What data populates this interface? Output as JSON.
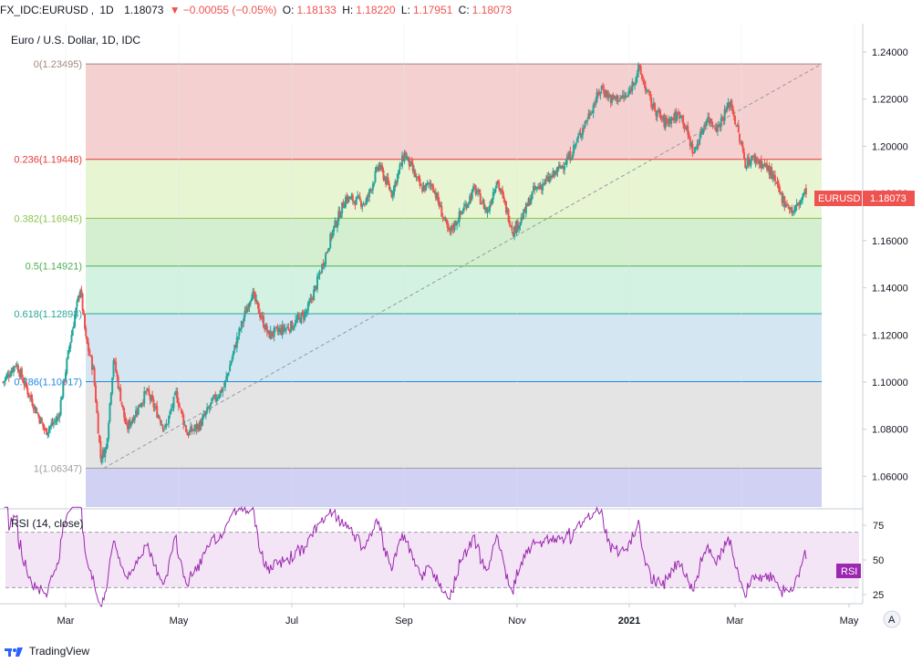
{
  "header": {
    "symbol": "FX_IDC:EURUSD",
    "interval": "1D",
    "last": "1.18073",
    "change_arrow": "▼",
    "change": "−0.00055 (−0.05%)",
    "o_label": "O:",
    "o_value": "1.18133",
    "h_label": "H:",
    "h_value": "1.18220",
    "l_label": "L:",
    "l_value": "1.17951",
    "c_label": "C:",
    "c_value": "1.18073"
  },
  "legend": {
    "title": "Euro / U.S. Dollar, 1D, IDC"
  },
  "price_tag": {
    "symbol": "EURUSD",
    "value": "1.18073",
    "color": "#ef5350"
  },
  "rsi": {
    "label": "RSI (14, close)",
    "tag": "RSI",
    "color": "#9c27b0",
    "upper": 70,
    "lower": 30,
    "y_ticks": [
      "75",
      "50",
      "25"
    ]
  },
  "footer": {
    "brand": "TradingView"
  },
  "auto_scale_button": "A",
  "colors": {
    "up": "#26a69a",
    "down": "#ef5350",
    "trend": "#9598a1"
  },
  "chart_data": {
    "type": "candlestick",
    "title": "Euro / U.S. Dollar, 1D, IDC",
    "ylim": [
      1.047,
      1.252
    ],
    "y_ticks": [
      "1.24000",
      "1.22000",
      "1.20000",
      "1.18000",
      "1.16000",
      "1.14000",
      "1.12000",
      "1.10000",
      "1.08000",
      "1.06000"
    ],
    "x_ticks": [
      "Mar",
      "May",
      "Jul",
      "Sep",
      "Nov",
      "2021",
      "Mar",
      "May"
    ],
    "fib_levels": [
      {
        "label": "0(1.23495)",
        "value": 1.23495,
        "color": "#a1887f",
        "fill": "#f5d0d0"
      },
      {
        "label": "0.236(1.19448)",
        "value": 1.19448,
        "color": "#e53935",
        "fill": "#e8f5d3"
      },
      {
        "label": "0.382(1.16945)",
        "value": 1.16945,
        "color": "#8bc34a",
        "fill": "#d4efcf"
      },
      {
        "label": "0.5(1.14921)",
        "value": 1.14921,
        "color": "#4caf50",
        "fill": "#d4f2e2"
      },
      {
        "label": "0.618(1.12898)",
        "value": 1.12898,
        "color": "#26a69a",
        "fill": "#d4e6f2"
      },
      {
        "label": "0.786(1.10017)",
        "value": 1.10017,
        "color": "#1e88e5",
        "fill": "#e4e4e4"
      },
      {
        "label": "1(1.06347)",
        "value": 1.06347,
        "color": "#9e9e9e",
        "fill": "#d1d1f3"
      }
    ],
    "anchors": [
      {
        "date": "2020-01-27",
        "price": 1.1
      },
      {
        "date": "2020-02-03",
        "price": 1.108
      },
      {
        "date": "2020-02-10",
        "price": 1.095
      },
      {
        "date": "2020-02-19",
        "price": 1.079
      },
      {
        "date": "2020-02-26",
        "price": 1.085
      },
      {
        "date": "2020-03-03",
        "price": 1.115
      },
      {
        "date": "2020-03-06",
        "price": 1.128
      },
      {
        "date": "2020-03-09",
        "price": 1.14
      },
      {
        "date": "2020-03-12",
        "price": 1.118
      },
      {
        "date": "2020-03-16",
        "price": 1.105
      },
      {
        "date": "2020-03-20",
        "price": 1.068
      },
      {
        "date": "2020-03-23",
        "price": 1.072
      },
      {
        "date": "2020-03-27",
        "price": 1.11
      },
      {
        "date": "2020-04-03",
        "price": 1.08
      },
      {
        "date": "2020-04-14",
        "price": 1.096
      },
      {
        "date": "2020-04-24",
        "price": 1.08
      },
      {
        "date": "2020-04-30",
        "price": 1.095
      },
      {
        "date": "2020-05-06",
        "price": 1.078
      },
      {
        "date": "2020-05-13",
        "price": 1.082
      },
      {
        "date": "2020-05-20",
        "price": 1.092
      },
      {
        "date": "2020-05-26",
        "price": 1.098
      },
      {
        "date": "2020-06-02",
        "price": 1.118
      },
      {
        "date": "2020-06-10",
        "price": 1.138
      },
      {
        "date": "2020-06-19",
        "price": 1.12
      },
      {
        "date": "2020-06-26",
        "price": 1.122
      },
      {
        "date": "2020-07-02",
        "price": 1.124
      },
      {
        "date": "2020-07-10",
        "price": 1.13
      },
      {
        "date": "2020-07-15",
        "price": 1.141
      },
      {
        "date": "2020-07-24",
        "price": 1.164
      },
      {
        "date": "2020-07-31",
        "price": 1.178
      },
      {
        "date": "2020-08-11",
        "price": 1.176
      },
      {
        "date": "2020-08-18",
        "price": 1.192
      },
      {
        "date": "2020-08-25",
        "price": 1.18
      },
      {
        "date": "2020-09-01",
        "price": 1.197
      },
      {
        "date": "2020-09-10",
        "price": 1.182
      },
      {
        "date": "2020-09-16",
        "price": 1.184
      },
      {
        "date": "2020-09-25",
        "price": 1.163
      },
      {
        "date": "2020-10-02",
        "price": 1.172
      },
      {
        "date": "2020-10-09",
        "price": 1.182
      },
      {
        "date": "2020-10-16",
        "price": 1.172
      },
      {
        "date": "2020-10-21",
        "price": 1.186
      },
      {
        "date": "2020-10-30",
        "price": 1.164
      },
      {
        "date": "2020-11-04",
        "price": 1.17
      },
      {
        "date": "2020-11-10",
        "price": 1.181
      },
      {
        "date": "2020-11-20",
        "price": 1.187
      },
      {
        "date": "2020-11-30",
        "price": 1.196
      },
      {
        "date": "2020-12-08",
        "price": 1.21
      },
      {
        "date": "2020-12-17",
        "price": 1.225
      },
      {
        "date": "2020-12-22",
        "price": 1.22
      },
      {
        "date": "2020-12-31",
        "price": 1.221
      },
      {
        "date": "2021-01-06",
        "price": 1.233
      },
      {
        "date": "2021-01-13",
        "price": 1.218
      },
      {
        "date": "2021-01-20",
        "price": 1.21
      },
      {
        "date": "2021-01-29",
        "price": 1.214
      },
      {
        "date": "2021-02-05",
        "price": 1.197
      },
      {
        "date": "2021-02-12",
        "price": 1.212
      },
      {
        "date": "2021-02-18",
        "price": 1.208
      },
      {
        "date": "2021-02-25",
        "price": 1.219
      },
      {
        "date": "2021-03-05",
        "price": 1.193
      },
      {
        "date": "2021-03-10",
        "price": 1.195
      },
      {
        "date": "2021-03-18",
        "price": 1.19
      },
      {
        "date": "2021-03-25",
        "price": 1.178
      },
      {
        "date": "2021-03-31",
        "price": 1.172
      },
      {
        "date": "2021-04-07",
        "price": 1.181
      }
    ]
  }
}
